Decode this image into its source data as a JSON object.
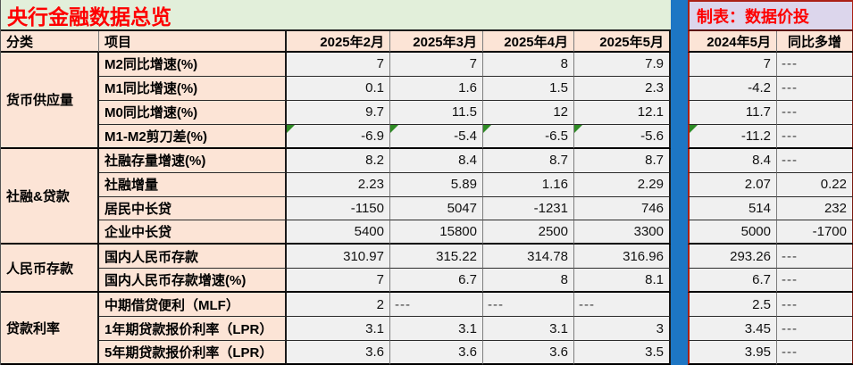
{
  "title": "央行金融数据总览",
  "subtitle": "制表：数据价投",
  "columns": {
    "category": "分类",
    "item": "项目",
    "months": [
      "2025年2月",
      "2025年3月",
      "2025年4月",
      "2025年5月"
    ],
    "compare": [
      "2024年5月",
      "同比多增"
    ]
  },
  "colors": {
    "title_bg": "#e2efda",
    "subtitle_bg": "#dcd6ec",
    "header_bg": "#fce4d6",
    "data_bg": "#f0f0f0",
    "divider_blue": "#1d76c4",
    "accent_red": "#fe0000",
    "maroon_border": "#ab2015",
    "triangle_green": "#2f8b25"
  },
  "groups": [
    {
      "category": "货币供应量",
      "rows": [
        {
          "item": "M2同比增速(%)",
          "values": [
            "7",
            "7",
            "8",
            "7.9"
          ],
          "prev": "7",
          "yoy": "---",
          "triangles": false
        },
        {
          "item": "M1同比增速(%)",
          "values": [
            "0.1",
            "1.6",
            "1.5",
            "2.3"
          ],
          "prev": "-4.2",
          "yoy": "---",
          "triangles": false
        },
        {
          "item": "M0同比增速(%)",
          "values": [
            "9.7",
            "11.5",
            "12",
            "12.1"
          ],
          "prev": "11.7",
          "yoy": "---",
          "triangles": false
        },
        {
          "item": "M1-M2剪刀差(%)",
          "values": [
            "-6.9",
            "-5.4",
            "-6.5",
            "-5.6"
          ],
          "prev": "-11.2",
          "yoy": "---",
          "triangles": true
        }
      ]
    },
    {
      "category": "社融&贷款",
      "rows": [
        {
          "item": "社融存量增速(%)",
          "values": [
            "8.2",
            "8.4",
            "8.7",
            "8.7"
          ],
          "prev": "8.4",
          "yoy": "---",
          "triangles": false
        },
        {
          "item": "社融增量",
          "values": [
            "2.23",
            "5.89",
            "1.16",
            "2.29"
          ],
          "prev": "2.07",
          "yoy": "0.22",
          "triangles": false
        },
        {
          "item": "居民中长贷",
          "values": [
            "-1150",
            "5047",
            "-1231",
            "746"
          ],
          "prev": "514",
          "yoy": "232",
          "triangles": false
        },
        {
          "item": "企业中长贷",
          "values": [
            "5400",
            "15800",
            "2500",
            "3300"
          ],
          "prev": "5000",
          "yoy": "-1700",
          "triangles": false
        }
      ]
    },
    {
      "category": "人民币存款",
      "rows": [
        {
          "item": "国内人民币存款",
          "values": [
            "310.97",
            "315.22",
            "314.78",
            "316.96"
          ],
          "prev": "293.26",
          "yoy": "---",
          "triangles": false
        },
        {
          "item": "国内人民币存款增速(%)",
          "values": [
            "7",
            "6.7",
            "8",
            "8.1"
          ],
          "prev": "6.7",
          "yoy": "---",
          "triangles": false
        }
      ]
    },
    {
      "category": "贷款利率",
      "rows": [
        {
          "item": "中期借贷便利（MLF）",
          "values": [
            "2",
            "---",
            "---",
            "---"
          ],
          "prev": "2.5",
          "yoy": "---",
          "triangles": false
        },
        {
          "item": "1年期贷款报价利率（LPR）",
          "values": [
            "3.1",
            "3.1",
            "3.1",
            "3"
          ],
          "prev": "3.45",
          "yoy": "---",
          "triangles": false
        },
        {
          "item": "5年期贷款报价利率（LPR）",
          "values": [
            "3.6",
            "3.6",
            "3.6",
            "3.5"
          ],
          "prev": "3.95",
          "yoy": "---",
          "triangles": false
        }
      ]
    }
  ]
}
